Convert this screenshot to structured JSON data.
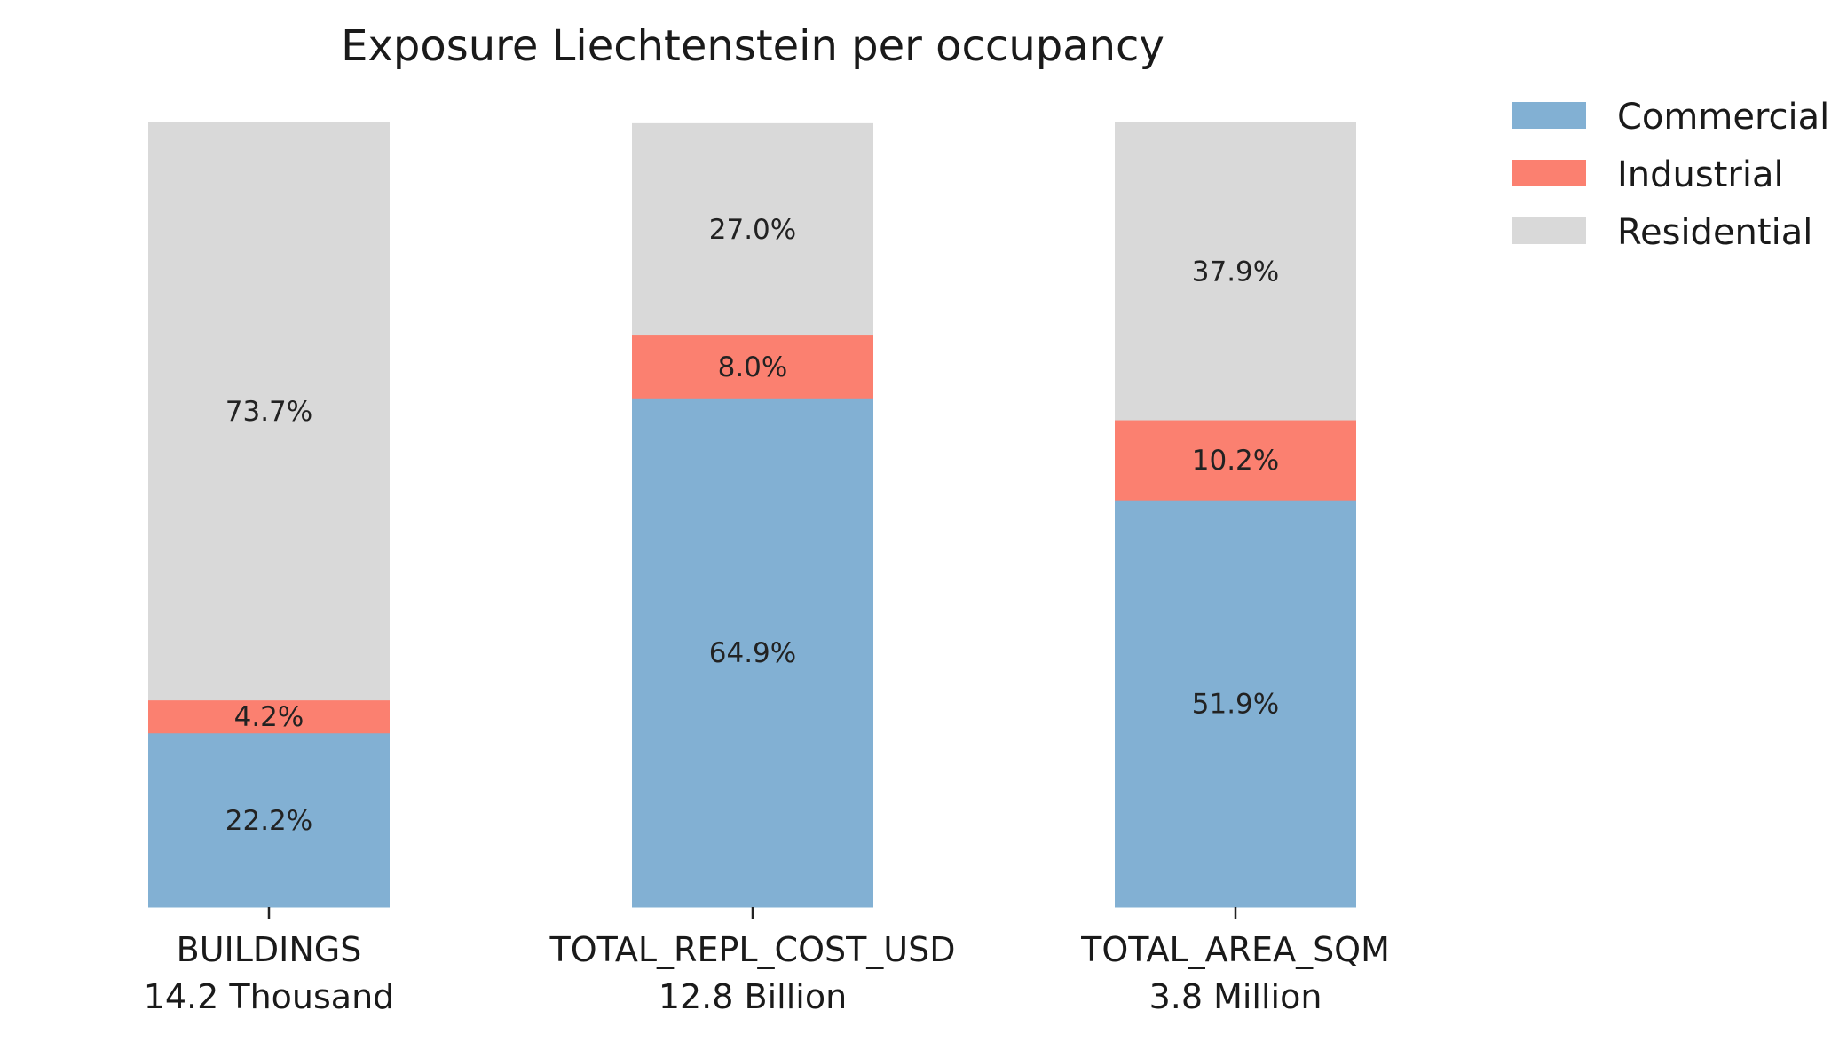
{
  "chart_data": {
    "type": "bar",
    "stacked": true,
    "title": "Exposure Liechtenstein per occupancy",
    "categories": [
      {
        "name": "BUILDINGS",
        "total": "14.2 Thousand"
      },
      {
        "name": "TOTAL_REPL_COST_USD",
        "total": "12.8 Billion"
      },
      {
        "name": "TOTAL_AREA_SQM",
        "total": "3.8 Million"
      }
    ],
    "series": [
      {
        "name": "Commercial",
        "color": "#82b0d3",
        "values": [
          22.2,
          64.9,
          51.9
        ],
        "labels": [
          "22.2%",
          "64.9%",
          "51.9%"
        ]
      },
      {
        "name": "Industrial",
        "color": "#fb8070",
        "values": [
          4.2,
          8.0,
          10.2
        ],
        "labels": [
          "4.2%",
          "8.0%",
          "10.2%"
        ]
      },
      {
        "name": "Residential",
        "color": "#d9d9d9",
        "values": [
          73.7,
          27.0,
          37.9
        ],
        "labels": [
          "73.7%",
          "27.0%",
          "37.9%"
        ]
      }
    ],
    "ylim": [
      0,
      100
    ],
    "xlabel": "",
    "ylabel": "",
    "grid": false,
    "legend_position": "top-right"
  }
}
